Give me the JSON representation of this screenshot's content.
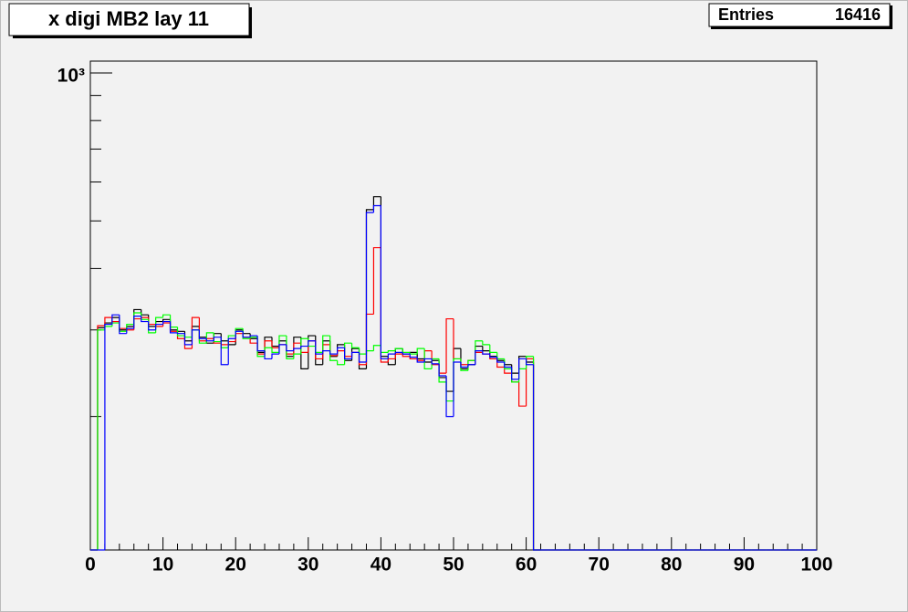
{
  "chart_data": {
    "type": "histogram",
    "title": "x digi MB2 lay 11",
    "stats": {
      "label": "Entries",
      "value": 16416
    },
    "log_y": true,
    "xlim": [
      0,
      100
    ],
    "xticks": [
      0,
      10,
      20,
      30,
      40,
      50,
      60,
      70,
      80,
      90,
      100
    ],
    "ylim": [
      107,
      1057
    ],
    "yticks": [
      {
        "value": 1000,
        "label": "10³"
      }
    ],
    "yminorticks": [
      200,
      300,
      400,
      500,
      600,
      700,
      800,
      900
    ],
    "bins": [
      0,
      1,
      2,
      3,
      4,
      5,
      6,
      7,
      8,
      9,
      10,
      11,
      12,
      13,
      14,
      15,
      16,
      17,
      18,
      19,
      20,
      21,
      22,
      23,
      24,
      25,
      26,
      27,
      28,
      29,
      30,
      31,
      32,
      33,
      34,
      35,
      36,
      37,
      38,
      39,
      40,
      41,
      42,
      43,
      44,
      45,
      46,
      47,
      48,
      49,
      50,
      51,
      52,
      53,
      54,
      55,
      56,
      57,
      58,
      59,
      60,
      61,
      62,
      63,
      64,
      65,
      66,
      67,
      68,
      69,
      70,
      71,
      72,
      73,
      74,
      75,
      76,
      77,
      78,
      79,
      80,
      81,
      82,
      83,
      84,
      85,
      86,
      87,
      88,
      89,
      90,
      91,
      92,
      93,
      94,
      95,
      96,
      97,
      98,
      99,
      100
    ],
    "series": [
      {
        "name": "black",
        "color": "#000000",
        "values": [
          0,
          303,
          310,
          318,
          300,
          305,
          330,
          322,
          305,
          312,
          315,
          300,
          298,
          285,
          305,
          290,
          282,
          295,
          285,
          280,
          300,
          295,
          288,
          270,
          290,
          278,
          285,
          265,
          290,
          250,
          292,
          255,
          285,
          265,
          280,
          260,
          275,
          250,
          527,
          560,
          265,
          255,
          275,
          268,
          270,
          262,
          258,
          260,
          240,
          225,
          275,
          250,
          255,
          278,
          272,
          265,
          260,
          255,
          245,
          265,
          258,
          0,
          0,
          0,
          0,
          0,
          0,
          0,
          0,
          0,
          0,
          0,
          0,
          0,
          0,
          0,
          0,
          0,
          0,
          0,
          0,
          0,
          0,
          0,
          0,
          0,
          0,
          0,
          0,
          0,
          0,
          0,
          0,
          0,
          0,
          0,
          0,
          0,
          0,
          0
        ]
      },
      {
        "name": "red",
        "color": "#ff0000",
        "values": [
          0,
          306,
          318,
          312,
          302,
          300,
          316,
          318,
          308,
          305,
          310,
          298,
          288,
          275,
          318,
          285,
          288,
          282,
          280,
          284,
          295,
          290,
          282,
          268,
          285,
          276,
          280,
          268,
          282,
          270,
          285,
          262,
          280,
          266,
          272,
          265,
          270,
          255,
          323,
          441,
          258,
          262,
          268,
          265,
          262,
          260,
          272,
          255,
          245,
          316,
          262,
          255,
          260,
          270,
          268,
          262,
          252,
          245,
          235,
          210,
          262,
          0,
          0,
          0,
          0,
          0,
          0,
          0,
          0,
          0,
          0,
          0,
          0,
          0,
          0,
          0,
          0,
          0,
          0,
          0,
          0,
          0,
          0,
          0,
          0,
          0,
          0,
          0,
          0,
          0,
          0,
          0,
          0,
          0,
          0,
          0,
          0,
          0,
          0,
          0
        ]
      },
      {
        "name": "green",
        "color": "#00ff00",
        "values": [
          0,
          300,
          305,
          310,
          298,
          308,
          325,
          315,
          296,
          318,
          322,
          304,
          292,
          290,
          300,
          282,
          296,
          284,
          276,
          292,
          302,
          288,
          290,
          265,
          276,
          270,
          292,
          262,
          268,
          288,
          278,
          270,
          292,
          260,
          255,
          282,
          276,
          268,
          272,
          279,
          270,
          272,
          275,
          270,
          268,
          275,
          250,
          262,
          235,
          215,
          262,
          248,
          260,
          285,
          280,
          270,
          262,
          250,
          235,
          250,
          265,
          0,
          0,
          0,
          0,
          0,
          0,
          0,
          0,
          0,
          0,
          0,
          0,
          0,
          0,
          0,
          0,
          0,
          0,
          0,
          0,
          0,
          0,
          0,
          0,
          0,
          0,
          0,
          0,
          0,
          0,
          0,
          0,
          0,
          0,
          0,
          0,
          0,
          0,
          0
        ]
      },
      {
        "name": "blue",
        "color": "#0000ff",
        "values": [
          0,
          0,
          308,
          322,
          295,
          302,
          320,
          312,
          300,
          308,
          312,
          296,
          295,
          280,
          300,
          288,
          285,
          290,
          255,
          288,
          298,
          290,
          292,
          272,
          262,
          268,
          280,
          272,
          275,
          278,
          285,
          268,
          272,
          268,
          276,
          262,
          270,
          258,
          520,
          537,
          262,
          268,
          270,
          268,
          264,
          258,
          262,
          256,
          242,
          200,
          258,
          252,
          255,
          272,
          268,
          264,
          258,
          252,
          238,
          262,
          255,
          0,
          0,
          0,
          0,
          0,
          0,
          0,
          0,
          0,
          0,
          0,
          0,
          0,
          0,
          0,
          0,
          0,
          0,
          0,
          0,
          0,
          0,
          0,
          0,
          0,
          0,
          0,
          0,
          0,
          0,
          0,
          0,
          0,
          0,
          0,
          0,
          0,
          0,
          0
        ]
      }
    ]
  }
}
